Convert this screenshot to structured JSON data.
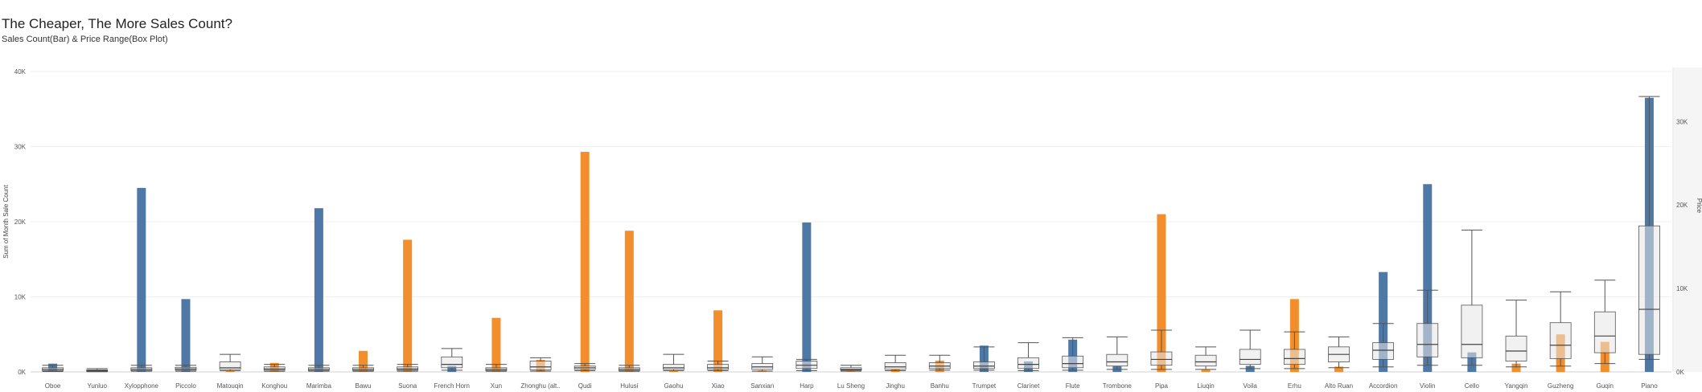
{
  "header": {
    "title": "The Cheaper, The More Sales Count?",
    "subtitle": "Sales Count(Bar) & Price Range(Box Plot)"
  },
  "colors": {
    "western": "#4e79a7",
    "chinese": "#f28e2b",
    "box_fill": "#e6e6e6",
    "box_stroke": "#555555",
    "grid": "#efefef"
  },
  "chart_data": {
    "type": "bar",
    "title": "The Cheaper, The More Sales Count?",
    "subtitle": "Sales Count(Bar) & Price Range(Box Plot)",
    "ylabel": "Sum of Month Sale Count",
    "y2label": "Price",
    "ylim": [
      0,
      40000
    ],
    "y2lim": [
      0,
      36000
    ],
    "y_ticks": [
      "0K",
      "10K",
      "20K",
      "30K",
      "40K"
    ],
    "y2_ticks": [
      "0K",
      "10K",
      "20K",
      "30K"
    ],
    "grid": true,
    "categories": [
      "Oboe",
      "Yunluo",
      "Xylopphone",
      "Piccolo",
      "Matouqin",
      "Konghou",
      "Marimba",
      "Bawu",
      "Suona",
      "French Horn",
      "Xun",
      "Zhonghu (alt..",
      "Qudi",
      "Hulusi",
      "Gaohu",
      "Xiao",
      "Sanxian",
      "Harp",
      "Lu Sheng",
      "Jinghu",
      "Banhu",
      "Trumpet",
      "Clarinet",
      "Flute",
      "Trombone",
      "Pipa",
      "Liuqin",
      "Voila",
      "Erhu",
      "Alto Ruan",
      "Accordion",
      "Violin",
      "Cello",
      "Yangqin",
      "Guzheng",
      "Guqin",
      "Piano"
    ],
    "series": [
      {
        "name": "Sales Count",
        "values": [
          1100,
          200,
          24500,
          9700,
          200,
          1200,
          21800,
          2800,
          17600,
          800,
          7200,
          1600,
          29300,
          18800,
          200,
          8200,
          200,
          19900,
          100,
          400,
          1500,
          3500,
          1400,
          4300,
          800,
          21000,
          300,
          800,
          9700,
          700,
          13300,
          25000,
          2600,
          1100,
          5000,
          4000,
          36500
        ],
        "group": [
          "western",
          "chinese",
          "western",
          "western",
          "chinese",
          "chinese",
          "western",
          "chinese",
          "chinese",
          "western",
          "chinese",
          "chinese",
          "chinese",
          "chinese",
          "chinese",
          "chinese",
          "chinese",
          "western",
          "chinese",
          "chinese",
          "chinese",
          "western",
          "western",
          "western",
          "western",
          "chinese",
          "chinese",
          "western",
          "chinese",
          "chinese",
          "western",
          "western",
          "western",
          "chinese",
          "chinese",
          "chinese",
          "western"
        ]
      },
      {
        "name": "Price",
        "box": [
          [
            50,
            150,
            300,
            500,
            800
          ],
          [
            30,
            80,
            150,
            250,
            400
          ],
          [
            100,
            150,
            300,
            500,
            800
          ],
          [
            100,
            200,
            350,
            550,
            800
          ],
          [
            150,
            300,
            500,
            1200,
            2100
          ],
          [
            80,
            200,
            350,
            600,
            900
          ],
          [
            100,
            150,
            300,
            500,
            800
          ],
          [
            80,
            150,
            300,
            500,
            800
          ],
          [
            100,
            200,
            350,
            600,
            900
          ],
          [
            200,
            500,
            900,
            1800,
            2800
          ],
          [
            80,
            150,
            300,
            500,
            900
          ],
          [
            100,
            250,
            600,
            1300,
            1700
          ],
          [
            150,
            300,
            500,
            700,
            1000
          ],
          [
            80,
            150,
            300,
            500,
            800
          ],
          [
            150,
            300,
            500,
            900,
            2100
          ],
          [
            150,
            300,
            500,
            900,
            1300
          ],
          [
            100,
            300,
            600,
            1000,
            1800
          ],
          [
            150,
            400,
            800,
            1300,
            1500
          ],
          [
            100,
            200,
            300,
            500,
            800
          ],
          [
            150,
            300,
            600,
            1100,
            2000
          ],
          [
            200,
            400,
            700,
            1100,
            2000
          ],
          [
            200,
            400,
            700,
            1200,
            3000
          ],
          [
            150,
            400,
            900,
            1700,
            3500
          ],
          [
            200,
            500,
            1000,
            1900,
            4100
          ],
          [
            300,
            700,
            1200,
            2100,
            4200
          ],
          [
            300,
            800,
            1500,
            2400,
            5000
          ],
          [
            300,
            700,
            1200,
            2000,
            3000
          ],
          [
            400,
            900,
            1500,
            2700,
            5000
          ],
          [
            400,
            900,
            1600,
            2700,
            4800
          ],
          [
            500,
            1200,
            2100,
            3000,
            4200
          ],
          [
            600,
            1500,
            2600,
            3500,
            5800
          ],
          [
            800,
            1800,
            3300,
            5800,
            9800
          ],
          [
            800,
            1700,
            3300,
            8000,
            17000
          ],
          [
            600,
            1300,
            2500,
            4300,
            8600
          ],
          [
            700,
            1600,
            3200,
            5900,
            9600
          ],
          [
            1000,
            2300,
            4300,
            7200,
            11000
          ],
          [
            1500,
            2100,
            7500,
            17500,
            33000
          ]
        ]
      }
    ]
  }
}
